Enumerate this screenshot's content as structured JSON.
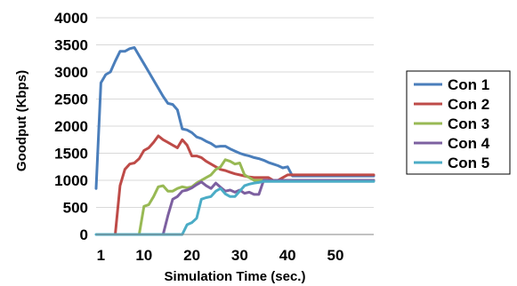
{
  "chart_data": {
    "type": "line",
    "xlabel": "Simulation Time (sec.)",
    "ylabel": "Goodput (Kbps)",
    "xlim": [
      0,
      58
    ],
    "ylim": [
      0,
      4000
    ],
    "x_ticks": [
      1,
      10,
      20,
      30,
      40,
      50
    ],
    "y_ticks": [
      0,
      500,
      1000,
      1500,
      2000,
      2500,
      3000,
      3500,
      4000
    ],
    "grid": "horizontal",
    "legend_position": "right",
    "series": [
      {
        "name": "Con 1",
        "color": "#4a7ebb",
        "points": [
          [
            0,
            850
          ],
          [
            1,
            2800
          ],
          [
            2,
            2950
          ],
          [
            3,
            3000
          ],
          [
            4,
            3200
          ],
          [
            5,
            3380
          ],
          [
            6,
            3380
          ],
          [
            7,
            3430
          ],
          [
            8,
            3450
          ],
          [
            9,
            3300
          ],
          [
            10,
            3150
          ],
          [
            11,
            3000
          ],
          [
            12,
            2850
          ],
          [
            13,
            2700
          ],
          [
            14,
            2550
          ],
          [
            15,
            2420
          ],
          [
            16,
            2400
          ],
          [
            17,
            2300
          ],
          [
            18,
            1950
          ],
          [
            19,
            1930
          ],
          [
            20,
            1880
          ],
          [
            21,
            1800
          ],
          [
            22,
            1770
          ],
          [
            23,
            1720
          ],
          [
            24,
            1680
          ],
          [
            25,
            1620
          ],
          [
            26,
            1630
          ],
          [
            27,
            1630
          ],
          [
            28,
            1580
          ],
          [
            29,
            1540
          ],
          [
            30,
            1500
          ],
          [
            31,
            1470
          ],
          [
            32,
            1450
          ],
          [
            33,
            1420
          ],
          [
            34,
            1400
          ],
          [
            35,
            1370
          ],
          [
            36,
            1330
          ],
          [
            37,
            1300
          ],
          [
            38,
            1270
          ],
          [
            39,
            1230
          ],
          [
            40,
            1250
          ],
          [
            41,
            1080
          ],
          [
            42,
            1080
          ],
          [
            58,
            1080
          ]
        ]
      },
      {
        "name": "Con 2",
        "color": "#be4b48",
        "points": [
          [
            4,
            0
          ],
          [
            5,
            900
          ],
          [
            6,
            1200
          ],
          [
            7,
            1300
          ],
          [
            8,
            1320
          ],
          [
            9,
            1400
          ],
          [
            10,
            1550
          ],
          [
            11,
            1600
          ],
          [
            12,
            1700
          ],
          [
            13,
            1820
          ],
          [
            14,
            1750
          ],
          [
            15,
            1700
          ],
          [
            16,
            1650
          ],
          [
            17,
            1600
          ],
          [
            18,
            1750
          ],
          [
            19,
            1650
          ],
          [
            20,
            1450
          ],
          [
            21,
            1450
          ],
          [
            22,
            1420
          ],
          [
            23,
            1350
          ],
          [
            24,
            1300
          ],
          [
            25,
            1250
          ],
          [
            26,
            1200
          ],
          [
            27,
            1180
          ],
          [
            28,
            1150
          ],
          [
            29,
            1120
          ],
          [
            30,
            1100
          ],
          [
            31,
            1080
          ],
          [
            32,
            1060
          ],
          [
            33,
            1050
          ],
          [
            34,
            1050
          ],
          [
            35,
            1050
          ],
          [
            36,
            1050
          ],
          [
            37,
            1000
          ],
          [
            38,
            1000
          ],
          [
            39,
            1050
          ],
          [
            40,
            1100
          ],
          [
            41,
            1100
          ],
          [
            58,
            1100
          ]
        ]
      },
      {
        "name": "Con 3",
        "color": "#98b954",
        "points": [
          [
            9,
            0
          ],
          [
            10,
            520
          ],
          [
            11,
            550
          ],
          [
            12,
            700
          ],
          [
            13,
            880
          ],
          [
            14,
            900
          ],
          [
            15,
            800
          ],
          [
            16,
            800
          ],
          [
            17,
            850
          ],
          [
            18,
            880
          ],
          [
            19,
            860
          ],
          [
            20,
            880
          ],
          [
            21,
            950
          ],
          [
            22,
            1000
          ],
          [
            23,
            1050
          ],
          [
            24,
            1100
          ],
          [
            25,
            1200
          ],
          [
            26,
            1250
          ],
          [
            27,
            1380
          ],
          [
            28,
            1350
          ],
          [
            29,
            1300
          ],
          [
            30,
            1320
          ],
          [
            31,
            1100
          ],
          [
            32,
            1050
          ],
          [
            33,
            1000
          ],
          [
            34,
            1000
          ],
          [
            35,
            1000
          ],
          [
            58,
            1000
          ]
        ]
      },
      {
        "name": "Con 4",
        "color": "#7d60a0",
        "points": [
          [
            14,
            0
          ],
          [
            15,
            350
          ],
          [
            16,
            650
          ],
          [
            17,
            700
          ],
          [
            18,
            800
          ],
          [
            19,
            820
          ],
          [
            20,
            860
          ],
          [
            21,
            920
          ],
          [
            22,
            970
          ],
          [
            23,
            900
          ],
          [
            24,
            850
          ],
          [
            25,
            950
          ],
          [
            26,
            870
          ],
          [
            27,
            800
          ],
          [
            28,
            820
          ],
          [
            29,
            780
          ],
          [
            30,
            820
          ],
          [
            31,
            760
          ],
          [
            32,
            780
          ],
          [
            33,
            740
          ],
          [
            34,
            740
          ],
          [
            35,
            1000
          ],
          [
            36,
            1000
          ],
          [
            58,
            1000
          ]
        ]
      },
      {
        "name": "Con 5",
        "color": "#4bacc6",
        "points": [
          [
            0,
            0
          ],
          [
            18,
            0
          ],
          [
            19,
            180
          ],
          [
            20,
            220
          ],
          [
            21,
            300
          ],
          [
            22,
            650
          ],
          [
            23,
            680
          ],
          [
            24,
            700
          ],
          [
            25,
            800
          ],
          [
            26,
            850
          ],
          [
            27,
            750
          ],
          [
            28,
            700
          ],
          [
            29,
            700
          ],
          [
            30,
            800
          ],
          [
            31,
            900
          ],
          [
            32,
            930
          ],
          [
            33,
            950
          ],
          [
            34,
            960
          ],
          [
            35,
            980
          ],
          [
            36,
            980
          ],
          [
            58,
            980
          ]
        ]
      }
    ]
  }
}
